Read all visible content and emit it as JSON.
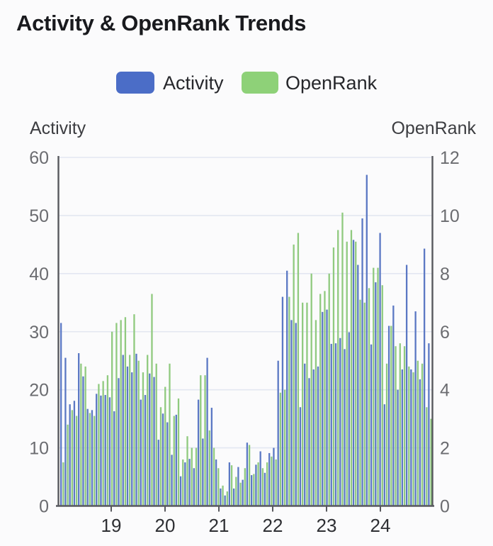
{
  "title": "Activity & OpenRank Trends",
  "legend": {
    "items": [
      {
        "label": "Activity",
        "color": "#4b6dc7"
      },
      {
        "label": "OpenRank",
        "color": "#8ed178"
      }
    ]
  },
  "axes": {
    "left_title": "Activity",
    "right_title": "OpenRank",
    "left_ticks": [
      60,
      50,
      40,
      30,
      20,
      10,
      0
    ],
    "right_ticks": [
      12,
      10,
      8,
      6,
      4,
      2,
      0
    ],
    "x_tick_labels": [
      "19",
      "20",
      "21",
      "22",
      "23",
      "24"
    ]
  },
  "colors": {
    "activity_bar": "#5b78c4",
    "openrank_bar": "#90ca7f",
    "grid": "#e3e7f1",
    "axis_line": "#58595e",
    "tick_text": "#6b6c70",
    "x_tick_text": "#2e2f33",
    "title_text": "#191a1e",
    "axis_title_text": "#3c3d41"
  },
  "chart_data": {
    "type": "bar",
    "title": "Activity & OpenRank Trends",
    "x": {
      "start": "2018-01",
      "interval": "month",
      "count": 84
    },
    "x_axis_year_labels": [
      "19",
      "20",
      "21",
      "22",
      "23",
      "24"
    ],
    "left_ylim": [
      0,
      60
    ],
    "right_ylim": [
      0,
      12
    ],
    "grid": true,
    "legend_position": "top",
    "series": [
      {
        "name": "Activity",
        "axis": "left",
        "color": "#5b78c4",
        "values": [
          31.5,
          25.5,
          17.5,
          18.1,
          26.3,
          22.3,
          16.7,
          16.5,
          19.3,
          19,
          19.1,
          18.7,
          16.3,
          22,
          26,
          24,
          23,
          26.2,
          18.3,
          19.1,
          22.8,
          22.2,
          11.4,
          15.9,
          14.4,
          8.8,
          15.7,
          5.1,
          7.5,
          8.1,
          6.5,
          18.3,
          11.6,
          25.5,
          16.9,
          8,
          3,
          1.8,
          7.5,
          3,
          6.7,
          4.5,
          10.9,
          5.3,
          7.1,
          9.4,
          5.7,
          9.1,
          10,
          25,
          36,
          40.5,
          32,
          31.5,
          17,
          24.5,
          22,
          23.5,
          24,
          33.4,
          33.8,
          27.9,
          28,
          28.9,
          27,
          29.9,
          45.8,
          41.5,
          49.5,
          57,
          27.8,
          38.5,
          47,
          17.5,
          31,
          34.5,
          20,
          23.5,
          41.5,
          23.5,
          33.5,
          21.8,
          44.3,
          28
        ]
      },
      {
        "name": "OpenRank",
        "axis": "right",
        "color": "#90ca7f",
        "values": [
          1.5,
          2.8,
          3.3,
          3.1,
          4.9,
          4.8,
          3.2,
          3.1,
          4.2,
          4.3,
          4.5,
          6,
          6.3,
          6.4,
          6.5,
          5.2,
          6.6,
          5,
          4.6,
          5.2,
          7.3,
          4.9,
          3.4,
          4.1,
          4.9,
          3.1,
          3.7,
          1.6,
          2.4,
          2,
          2,
          4.5,
          4.5,
          2.6,
          2,
          1.3,
          0.7,
          0.5,
          1.4,
          1,
          0.8,
          1.3,
          2.1,
          1.1,
          1.5,
          1.3,
          1.5,
          1.7,
          1.6,
          3.9,
          4,
          7.2,
          9,
          9.4,
          7,
          7,
          8,
          6.4,
          7.3,
          7.4,
          8,
          8.9,
          9.5,
          10.1,
          9.1,
          9.5,
          9.1,
          7.1,
          7,
          7.5,
          8.2,
          8.2,
          7.6,
          4.9,
          6.2,
          5.5,
          5.6,
          5.5,
          4.8,
          4.6,
          5,
          4.9,
          3.4,
          3
        ]
      }
    ]
  }
}
